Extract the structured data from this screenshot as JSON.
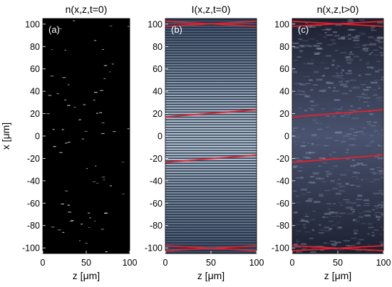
{
  "chart_data": [
    {
      "type": "heatmap",
      "panel_label": "(a)",
      "title": "n(x,z,t=0)",
      "xlabel": "z [μm]",
      "ylabel": "x [μm]",
      "xlim": [
        0,
        100
      ],
      "ylim": [
        -105,
        105
      ],
      "xticks": [
        "0",
        "50",
        "100"
      ],
      "yticks": [
        "100",
        "80",
        "60",
        "40",
        "20",
        "0",
        "-20",
        "-40",
        "-60",
        "-80",
        "-100"
      ],
      "background_color": "#000000",
      "content": "sparse random dim white dashes on black",
      "red_lines": []
    },
    {
      "type": "heatmap",
      "panel_label": "(b)",
      "title": "I(x,z,t=0)",
      "xlabel": "z [μm]",
      "xlim": [
        0,
        100
      ],
      "ylim": [
        -105,
        105
      ],
      "xticks": [
        "0",
        "50",
        "100"
      ],
      "yticks": [
        "100",
        "80",
        "60",
        "40",
        "20",
        "0",
        "-20",
        "-40",
        "-60",
        "-80",
        "-100"
      ],
      "content": "dense horizontal interference fringes, brightest near x=0",
      "fringe_color": "#c8d8e6",
      "red_lines": [
        {
          "z": [
            0,
            100
          ],
          "x": [
            102.5,
            98
          ]
        },
        {
          "z": [
            0,
            100
          ],
          "x": [
            98,
            102.5
          ]
        },
        {
          "z": [
            0,
            100
          ],
          "x": [
            17,
            23.5
          ]
        },
        {
          "z": [
            0,
            100
          ],
          "x": [
            -23.5,
            -17
          ]
        },
        {
          "z": [
            0,
            100
          ],
          "x": [
            -98,
            -102.5
          ]
        },
        {
          "z": [
            0,
            100
          ],
          "x": [
            -102.5,
            -98
          ]
        }
      ]
    },
    {
      "type": "heatmap",
      "panel_label": "(c)",
      "title": "n(x,z,t>0)",
      "xlabel": "z [μm]",
      "xlim": [
        0,
        100
      ],
      "ylim": [
        -105,
        105
      ],
      "xticks": [
        "0",
        "50",
        "100"
      ],
      "yticks": [
        "100",
        "80",
        "60",
        "40",
        "20",
        "0",
        "-20",
        "-40",
        "-60",
        "-80",
        "-100"
      ],
      "content": "speckled bluish-grey texture on dark background",
      "red_lines": [
        {
          "z": [
            0,
            100
          ],
          "x": [
            102.5,
            98
          ]
        },
        {
          "z": [
            0,
            100
          ],
          "x": [
            98,
            102.5
          ]
        },
        {
          "z": [
            0,
            100
          ],
          "x": [
            17,
            23.5
          ]
        },
        {
          "z": [
            0,
            100
          ],
          "x": [
            -23.5,
            -17
          ]
        },
        {
          "z": [
            0,
            100
          ],
          "x": [
            -98,
            -102.5
          ]
        },
        {
          "z": [
            0,
            100
          ],
          "x": [
            -102.5,
            -98
          ]
        }
      ]
    }
  ],
  "colors": {
    "red_line": "#e8202a",
    "panel_a_bg": "#000000",
    "panel_b_bright": "#d4e2ee",
    "panel_b_dark": "#1a2438",
    "panel_c_tint": "#7a86a8"
  }
}
